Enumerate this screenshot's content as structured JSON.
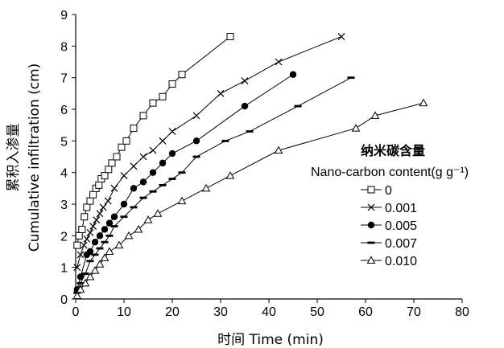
{
  "chart_data": {
    "type": "line",
    "xlabel": "时间 Time (min)",
    "ylabel_cn": "累积入渗量",
    "ylabel_en": "Cumulative infiltration (cm)",
    "xlim": [
      0,
      80
    ],
    "ylim": [
      0,
      9
    ],
    "xticks": [
      0,
      10,
      20,
      30,
      40,
      50,
      60,
      70,
      80
    ],
    "yticks": [
      0,
      1,
      2,
      3,
      4,
      5,
      6,
      7,
      8,
      9
    ],
    "grid": false,
    "legend_position": "right",
    "legend_title_cn": "纳米碳含量",
    "legend_title_en": "Nano-carbon content(g g⁻¹)",
    "series": [
      {
        "name": "0",
        "marker": "square-open",
        "x": [
          0.3,
          0.7,
          1.3,
          1.8,
          2.3,
          3,
          3.6,
          4.2,
          4.8,
          5.3,
          6,
          6.8,
          7.5,
          8.5,
          9.5,
          10.5,
          12,
          14,
          16,
          18,
          20,
          22,
          32
        ],
        "y": [
          1.7,
          2.0,
          2.2,
          2.6,
          2.9,
          3.1,
          3.3,
          3.5,
          3.6,
          3.8,
          3.9,
          4.1,
          4.3,
          4.5,
          4.8,
          5.0,
          5.4,
          5.8,
          6.2,
          6.4,
          6.8,
          7.1,
          8.3
        ]
      },
      {
        "name": "0.001",
        "marker": "cross",
        "x": [
          0.3,
          1,
          1.7,
          2.3,
          3,
          3.6,
          4.3,
          5,
          5.7,
          6.7,
          8,
          10,
          12,
          14,
          16,
          18,
          20,
          25,
          30,
          35,
          42,
          55
        ],
        "y": [
          1.0,
          1.4,
          1.7,
          1.9,
          2.1,
          2.3,
          2.5,
          2.7,
          2.9,
          3.1,
          3.5,
          3.9,
          4.2,
          4.5,
          4.7,
          5.0,
          5.3,
          5.8,
          6.5,
          6.9,
          7.5,
          8.3
        ]
      },
      {
        "name": "0.005",
        "marker": "circle-filled",
        "x": [
          0.3,
          1,
          2.3,
          3,
          4,
          5,
          6,
          7,
          8,
          10,
          12,
          14,
          16,
          18,
          20,
          25,
          35,
          45
        ],
        "y": [
          0.3,
          0.7,
          1.4,
          1.5,
          1.8,
          2.0,
          2.2,
          2.4,
          2.6,
          3.0,
          3.5,
          3.7,
          4.0,
          4.3,
          4.6,
          5.0,
          6.1,
          7.1
        ]
      },
      {
        "name": "0.007",
        "marker": "dash",
        "x": [
          0.3,
          1,
          2,
          3,
          4,
          5,
          6,
          7,
          8,
          10,
          12,
          14,
          16,
          18,
          20,
          22,
          25,
          31,
          36,
          46,
          57
        ],
        "y": [
          0.2,
          0.5,
          0.8,
          1.2,
          1.4,
          1.6,
          1.8,
          2.0,
          2.3,
          2.6,
          2.9,
          3.2,
          3.4,
          3.6,
          3.8,
          4.0,
          4.5,
          5.0,
          5.3,
          6.1,
          7.0
        ]
      },
      {
        "name": "0.010",
        "marker": "triangle-open",
        "x": [
          0.3,
          1,
          2,
          3,
          4,
          5,
          6,
          7,
          9,
          11,
          13,
          15,
          17,
          22,
          27,
          32,
          42,
          58,
          62,
          72
        ],
        "y": [
          0.1,
          0.3,
          0.5,
          0.7,
          0.9,
          1.1,
          1.3,
          1.5,
          1.7,
          2.0,
          2.2,
          2.5,
          2.7,
          3.1,
          3.5,
          3.9,
          4.7,
          5.4,
          5.8,
          6.2
        ]
      }
    ]
  }
}
